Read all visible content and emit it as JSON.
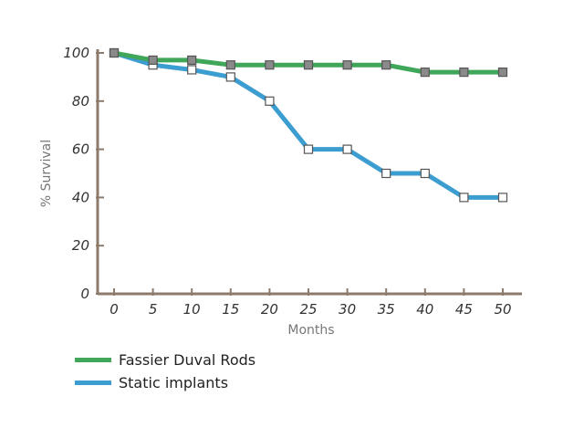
{
  "chart_data": {
    "type": "line",
    "title": "",
    "xlabel": "Months",
    "ylabel": "% Survival",
    "x": [
      0,
      5,
      10,
      15,
      20,
      25,
      30,
      35,
      40,
      45,
      50
    ],
    "xlim": [
      0,
      50
    ],
    "ylim": [
      0,
      100
    ],
    "yticks": [
      0,
      20,
      40,
      60,
      80,
      100
    ],
    "grid": false,
    "legend_position": "bottom-left",
    "axis_color": "#8c7b6c",
    "series": [
      {
        "name": "Fassier Duval Rods",
        "color": "#3fa65a",
        "marker": "filled-square",
        "values": [
          100,
          97,
          97,
          95,
          95,
          95,
          95,
          95,
          92,
          92,
          92
        ]
      },
      {
        "name": "Static implants",
        "color": "#3c9dd0",
        "marker": "hollow-square",
        "values": [
          100,
          95,
          93,
          90,
          80,
          60,
          60,
          50,
          50,
          40,
          40
        ]
      }
    ]
  }
}
